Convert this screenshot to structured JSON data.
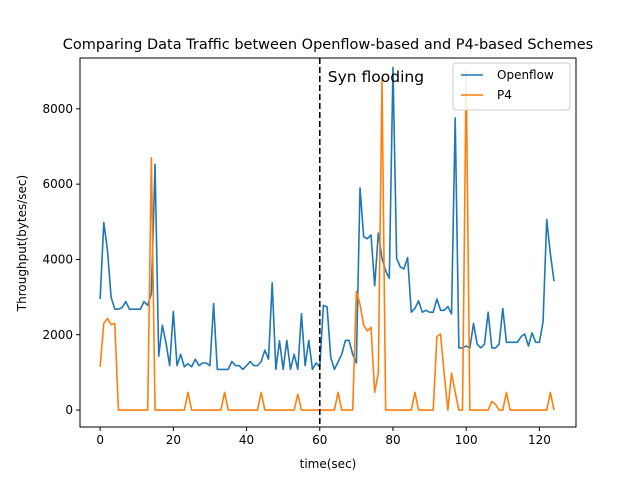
{
  "chart_data": {
    "type": "line",
    "title": "Comparing Data Traffic between Openflow-based and P4-based Schemes",
    "xlabel": "time(sec)",
    "ylabel": "Throughput(bytes/sec)",
    "xlim": [
      -5.5,
      130
    ],
    "ylim": [
      -450,
      9350
    ],
    "xticks": [
      0,
      20,
      40,
      60,
      80,
      100,
      120
    ],
    "yticks": [
      0,
      2000,
      4000,
      6000,
      8000
    ],
    "grid": false,
    "legend_position": "top-right",
    "annotation": {
      "text": "Syn flooding",
      "x": 60
    },
    "x": [
      0,
      1,
      2,
      3,
      4,
      5,
      6,
      7,
      8,
      9,
      10,
      11,
      12,
      13,
      14,
      15,
      16,
      17,
      18,
      19,
      20,
      21,
      22,
      23,
      24,
      25,
      26,
      27,
      28,
      29,
      30,
      31,
      32,
      33,
      34,
      35,
      36,
      37,
      38,
      39,
      40,
      41,
      42,
      43,
      44,
      45,
      46,
      47,
      48,
      49,
      50,
      51,
      52,
      53,
      54,
      55,
      56,
      57,
      58,
      59,
      60,
      61,
      62,
      63,
      64,
      65,
      66,
      67,
      68,
      69,
      70,
      71,
      72,
      73,
      74,
      75,
      76,
      77,
      78,
      79,
      80,
      81,
      82,
      83,
      84,
      85,
      86,
      87,
      88,
      89,
      90,
      91,
      92,
      93,
      94,
      95,
      96,
      97,
      98,
      99,
      100,
      101,
      102,
      103,
      104,
      105,
      106,
      107,
      108,
      109,
      110,
      111,
      112,
      113,
      114,
      115,
      116,
      117,
      118,
      119,
      120,
      121,
      122,
      123,
      124
    ],
    "series": [
      {
        "name": "Openflow",
        "color": "#1f77b4",
        "values": [
          2950,
          4980,
          4250,
          3000,
          2680,
          2680,
          2720,
          2880,
          2680,
          2680,
          2680,
          2680,
          2880,
          2780,
          3100,
          6530,
          1430,
          2250,
          1780,
          1180,
          2620,
          1180,
          1480,
          1150,
          1230,
          1150,
          1350,
          1180,
          1250,
          1250,
          1180,
          2830,
          1080,
          1080,
          1080,
          1080,
          1290,
          1180,
          1180,
          1080,
          1180,
          1290,
          1180,
          1180,
          1290,
          1590,
          1350,
          3380,
          1080,
          1840,
          1080,
          1850,
          1080,
          1480,
          1080,
          2560,
          1180,
          1850,
          1080,
          1250,
          1150,
          2780,
          2740,
          1400,
          1080,
          1280,
          1480,
          1850,
          1850,
          1480,
          1250,
          5900,
          4600,
          4550,
          4650,
          3300,
          4700,
          4030,
          3700,
          3500,
          9100,
          4030,
          3800,
          3750,
          4050,
          2600,
          2700,
          2900,
          2600,
          2650,
          2600,
          2600,
          2950,
          2650,
          2650,
          2750,
          2550,
          7760,
          1650,
          1650,
          1700,
          1650,
          2300,
          1750,
          1650,
          1750,
          2600,
          1650,
          1650,
          1750,
          2700,
          1800,
          1800,
          1800,
          1800,
          1950,
          2020,
          1700,
          2050,
          1800,
          1800,
          2350,
          5060,
          4150,
          3420
        ]
      },
      {
        "name": "P4",
        "color": "#ff7f0e",
        "values": [
          1150,
          2300,
          2430,
          2270,
          2300,
          0,
          0,
          0,
          0,
          0,
          0,
          0,
          0,
          0,
          6700,
          0,
          0,
          0,
          0,
          0,
          0,
          0,
          0,
          0,
          470,
          0,
          0,
          0,
          0,
          0,
          0,
          0,
          0,
          0,
          470,
          0,
          0,
          0,
          0,
          0,
          0,
          0,
          0,
          0,
          470,
          0,
          0,
          0,
          0,
          0,
          0,
          0,
          0,
          0,
          420,
          0,
          0,
          0,
          0,
          0,
          0,
          0,
          0,
          0,
          0,
          470,
          0,
          0,
          0,
          0,
          3150,
          2800,
          2250,
          2100,
          2200,
          470,
          980,
          8800,
          0,
          0,
          0,
          0,
          0,
          0,
          0,
          0,
          470,
          0,
          0,
          0,
          0,
          0,
          1950,
          2020,
          950,
          0,
          980,
          480,
          0,
          0,
          9000,
          0,
          0,
          0,
          0,
          0,
          0,
          230,
          150,
          0,
          0,
          470,
          0,
          0,
          0,
          0,
          0,
          0,
          0,
          0,
          0,
          0,
          0,
          470,
          0
        ]
      }
    ]
  }
}
